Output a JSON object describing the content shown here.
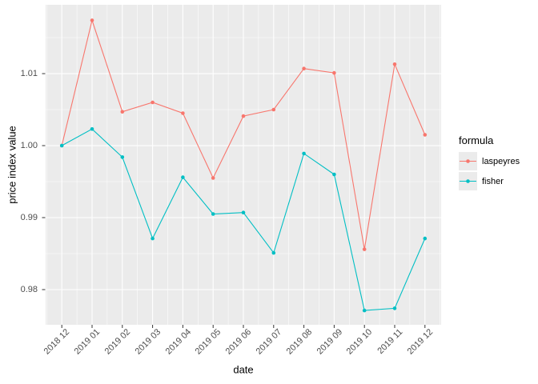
{
  "chart_data": {
    "type": "line",
    "title": "",
    "xlabel": "date",
    "ylabel": "price index value",
    "categories": [
      "2018 12",
      "2019 01",
      "2019 02",
      "2019 03",
      "2019 04",
      "2019 05",
      "2019 06",
      "2019 07",
      "2019 08",
      "2019 09",
      "2019 10",
      "2019 11",
      "2019 12"
    ],
    "series": [
      {
        "name": "laspeyres",
        "color": "#F8766D",
        "values": [
          1.0,
          1.0174,
          1.0047,
          1.006,
          1.0045,
          0.9955,
          1.0041,
          1.005,
          1.0107,
          1.0101,
          0.9856,
          1.0113,
          1.0015
        ]
      },
      {
        "name": "fisher",
        "color": "#00BFC4",
        "values": [
          1.0,
          1.0023,
          0.9984,
          0.9871,
          0.9956,
          0.9905,
          0.9907,
          0.9851,
          0.9989,
          0.996,
          0.9771,
          0.9774,
          0.9871
        ]
      }
    ],
    "y_ticks": [
      0.98,
      0.99,
      1.0,
      1.01
    ],
    "y_tick_labels": [
      "0.98",
      "0.99",
      "1.00",
      "1.01"
    ],
    "ylim": [
      0.97511,
      1.01956
    ],
    "x_tick_angle": 45,
    "grid": true,
    "legend_position": "right",
    "legend_title": "formula",
    "colors": {
      "panel_background": "#EBEBEB",
      "grid": "#FFFFFF",
      "axis_text": "#4D4D4D",
      "tick_marks": "#333333"
    }
  }
}
